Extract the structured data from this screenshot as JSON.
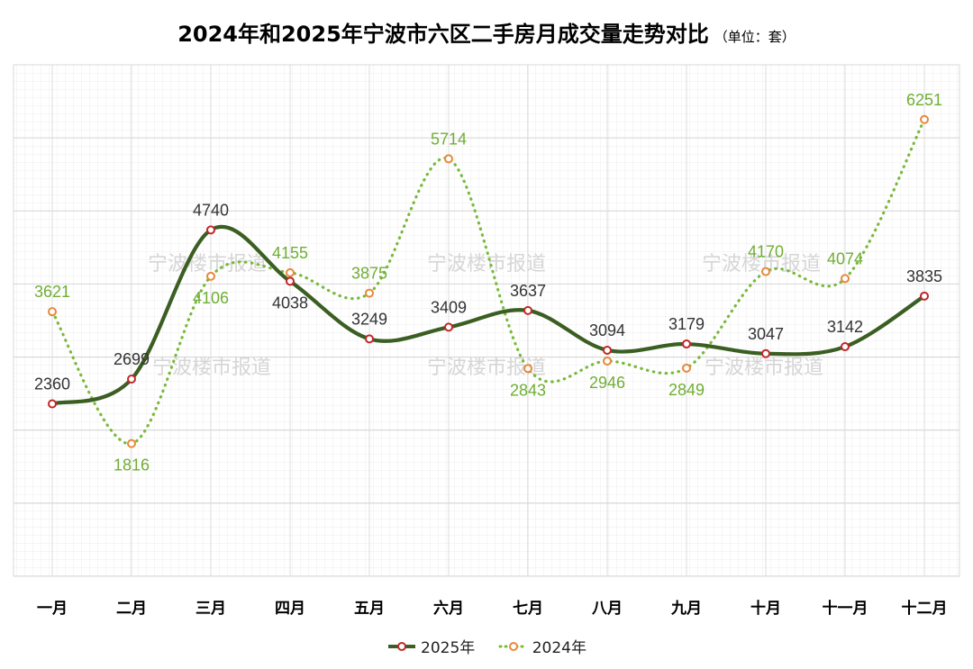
{
  "chart_data": {
    "type": "line",
    "title": "2024年和2025年宁波市六区二手房月成交量走势对比",
    "subtitle": "（单位：套）",
    "categories": [
      "一月",
      "二月",
      "三月",
      "四月",
      "五月",
      "六月",
      "七月",
      "八月",
      "九月",
      "十月",
      "十一月",
      "十二月"
    ],
    "series": [
      {
        "name": "2025年",
        "values": [
          2360,
          2699,
          4740,
          4038,
          3249,
          3409,
          3637,
          3094,
          3179,
          3047,
          3142,
          3835
        ],
        "color": "#3b5e22",
        "marker_color": "#c0282a",
        "style": "solid"
      },
      {
        "name": "2024年",
        "values": [
          3621,
          1816,
          4106,
          4155,
          3875,
          5714,
          2843,
          2946,
          2849,
          4170,
          4074,
          6251
        ],
        "color": "#7ab93c",
        "marker_color": "#e8883a",
        "style": "dotted"
      }
    ],
    "ylim": [
      0,
      7000
    ],
    "grid": true,
    "legend": "bottom-center",
    "watermark": "宁波楼市报道",
    "xlabel": "",
    "ylabel": ""
  }
}
